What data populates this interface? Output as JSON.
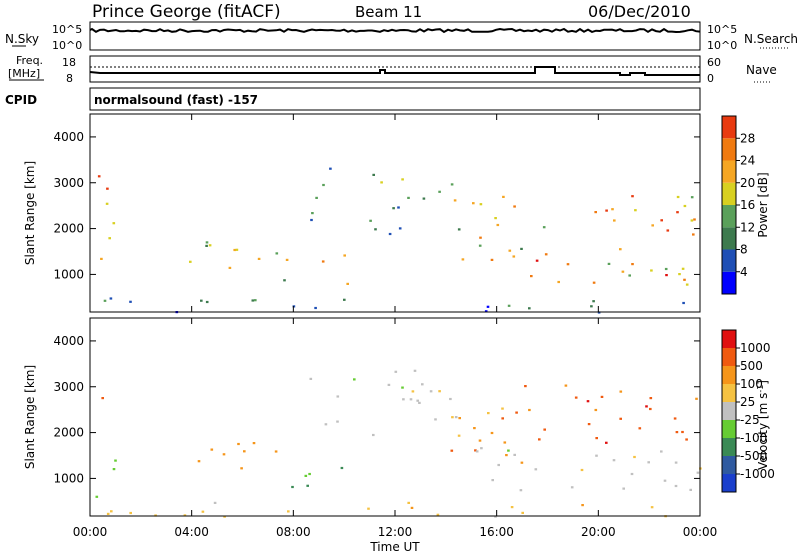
{
  "header": {
    "radar": "Prince George (fitACF)",
    "beam": "Beam 11",
    "date": "06/Dec/2010"
  },
  "param_panels": {
    "nsky_label": "N.Sky",
    "nsearch_label": "N.Search",
    "noise_ticks": [
      "10^5",
      "10^0"
    ],
    "freq_label_1": "Freq.",
    "freq_label_2": "[MHz]",
    "freq_ticks": [
      "18",
      "8"
    ],
    "nave_label": "Nave",
    "nave_ticks": [
      "60",
      "0"
    ],
    "cpid_label": "CPID",
    "cpid_value": "normalsound (fast) -157"
  },
  "colors": {
    "power": [
      "#0000ff",
      "#1f4fb5",
      "#3d7a4e",
      "#5aa05a",
      "#d8d020",
      "#f5a623",
      "#f07a10",
      "#e83a10",
      "#e01010"
    ],
    "velocity": [
      "#e01010",
      "#f05a10",
      "#f5951a",
      "#f5c242",
      "#c0c0c0",
      "#66cc33",
      "#3a8a55",
      "#2f5aa0",
      "#1a3fcc"
    ]
  },
  "chart_data": [
    {
      "type": "heatmap",
      "name": "power",
      "ylabel": "Slant Range [km]",
      "yticks": [
        "4000",
        "3000",
        "2000",
        "1000"
      ],
      "ylim": [
        180,
        4500
      ],
      "xlim": [
        "00:00",
        "24:00"
      ],
      "colorbar_label": "Power [dB]",
      "colorbar_ticks": [
        "28",
        "24",
        "20",
        "16",
        "12",
        "8",
        "4"
      ],
      "clim": [
        0,
        32
      ],
      "scatter_regions": [
        {
          "t0": 0.0,
          "t1": 1.0,
          "r0": 800,
          "r1": 3200,
          "v0": 12,
          "v1": 28
        },
        {
          "t0": 3.8,
          "t1": 7.5,
          "r0": 1000,
          "r1": 2000,
          "v0": 8,
          "v1": 24
        },
        {
          "t0": 7.5,
          "t1": 10.2,
          "r0": 800,
          "r1": 1500,
          "v0": 8,
          "v1": 24
        },
        {
          "t0": 8.5,
          "t1": 10.0,
          "r0": 2100,
          "r1": 3400,
          "v0": 4,
          "v1": 14
        },
        {
          "t0": 10.5,
          "t1": 14.5,
          "r0": 1900,
          "r1": 3300,
          "v0": 4,
          "v1": 16
        },
        {
          "t0": 14.0,
          "t1": 17.0,
          "r0": 900,
          "r1": 2800,
          "v0": 8,
          "v1": 24
        },
        {
          "t0": 17.0,
          "t1": 24.0,
          "r0": 800,
          "r1": 2800,
          "v0": 12,
          "v1": 30
        },
        {
          "t0": 0.5,
          "t1": 24.0,
          "r0": 180,
          "r1": 500,
          "v0": 2,
          "v1": 12
        }
      ]
    },
    {
      "type": "heatmap",
      "name": "velocity",
      "ylabel": "Slant Range [km]",
      "yticks": [
        "4000",
        "3000",
        "2000",
        "1000"
      ],
      "ylim": [
        180,
        4500
      ],
      "xlim": [
        "00:00",
        "24:00"
      ],
      "xlabel": "Time UT",
      "xticks": [
        "00:00",
        "04:00",
        "08:00",
        "12:00",
        "16:00",
        "20:00",
        "00:00"
      ],
      "colorbar_label": "Velocity [m s",
      "colorbar_label_sup": "-1",
      "colorbar_label_end": "]",
      "colorbar_ticks": [
        "1000",
        "500",
        "100",
        "25",
        "-25",
        "-100",
        "-500",
        "-1000"
      ],
      "scatter_regions": [
        {
          "t0": 0.0,
          "t1": 1.1,
          "r0": 600,
          "r1": 1600,
          "class": 5
        },
        {
          "t0": 0.0,
          "t1": 0.8,
          "r0": 2500,
          "r1": 3100,
          "class": 1
        },
        {
          "t0": 3.8,
          "t1": 7.5,
          "r0": 1100,
          "r1": 2000,
          "class": 2
        },
        {
          "t0": 7.5,
          "t1": 10.2,
          "r0": 800,
          "r1": 1500,
          "class": 6
        },
        {
          "t0": 8.5,
          "t1": 14.5,
          "r0": 1900,
          "r1": 3400,
          "class": 4
        },
        {
          "t0": 14.0,
          "t1": 17.5,
          "r0": 1200,
          "r1": 2700,
          "class": 2
        },
        {
          "t0": 15.0,
          "t1": 24.0,
          "r0": 700,
          "r1": 1700,
          "class": 4
        },
        {
          "t0": 17.0,
          "t1": 24.0,
          "r0": 1800,
          "r1": 3100,
          "class": 1
        },
        {
          "t0": 0.5,
          "t1": 24.0,
          "r0": 180,
          "r1": 500,
          "class": 3
        }
      ]
    }
  ]
}
